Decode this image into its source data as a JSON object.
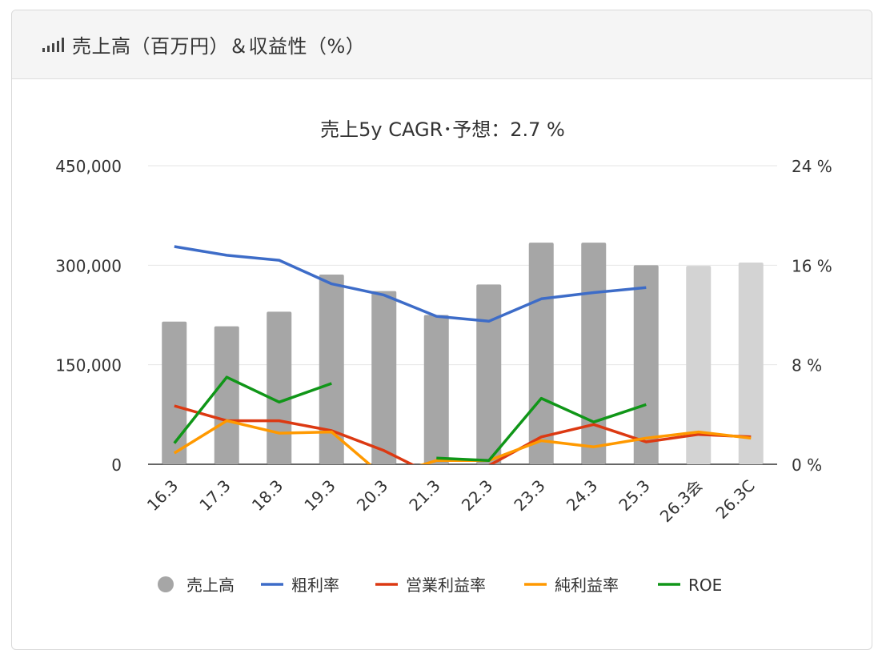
{
  "header": {
    "title": "売上高（百万円）＆収益性（%）",
    "icon": "signal-bars-icon"
  },
  "chart_data": {
    "type": "bar+line",
    "title": "売上5y CAGR･予想：2.7 %",
    "categories": [
      "16.3",
      "17.3",
      "18.3",
      "19.3",
      "20.3",
      "21.3",
      "22.3",
      "23.3",
      "24.3",
      "25.3",
      "26.3会",
      "26.3C"
    ],
    "y_left": {
      "min": 0,
      "max": 450000,
      "ticks": [
        0,
        150000,
        300000,
        450000
      ],
      "tick_labels": [
        "0",
        "150,000",
        "300,000",
        "450,000"
      ]
    },
    "y_right": {
      "min": 0,
      "max": 24,
      "ticks": [
        0,
        8,
        16,
        24
      ],
      "tick_labels": [
        "0 %",
        "8 %",
        "16 %",
        "24 %"
      ]
    },
    "bars": {
      "name": "売上高",
      "values": [
        215000,
        208000,
        230000,
        286000,
        261000,
        225000,
        271000,
        334000,
        334000,
        300000,
        299000,
        304000
      ],
      "colors": [
        "#a6a6a6",
        "#a6a6a6",
        "#a6a6a6",
        "#a6a6a6",
        "#a6a6a6",
        "#a6a6a6",
        "#a6a6a6",
        "#a6a6a6",
        "#a6a6a6",
        "#a6a6a6",
        "#d3d3d3",
        "#d3d3d3"
      ]
    },
    "series": [
      {
        "name": "粗利率",
        "color": "#3d6cc8",
        "values": [
          17.5,
          16.8,
          16.4,
          14.5,
          13.6,
          11.9,
          11.5,
          13.3,
          13.8,
          14.2,
          null,
          null
        ]
      },
      {
        "name": "営業利益率",
        "color": "#dc3912",
        "values": [
          4.7,
          3.5,
          3.5,
          2.7,
          1.1,
          -1.0,
          -0.1,
          2.2,
          3.2,
          1.8,
          2.4,
          2.2
        ]
      },
      {
        "name": "純利益率",
        "color": "#ff9900",
        "values": [
          0.9,
          3.5,
          2.5,
          2.6,
          -1.0,
          0.3,
          0.3,
          1.9,
          1.4,
          2.1,
          2.6,
          2.1
        ]
      },
      {
        "name": "ROE",
        "color": "#109618",
        "values": [
          1.7,
          7.0,
          5.0,
          6.5,
          null,
          0.5,
          0.3,
          5.3,
          3.4,
          4.8,
          null,
          null
        ]
      }
    ],
    "legend_position": "bottom",
    "grid": true
  }
}
